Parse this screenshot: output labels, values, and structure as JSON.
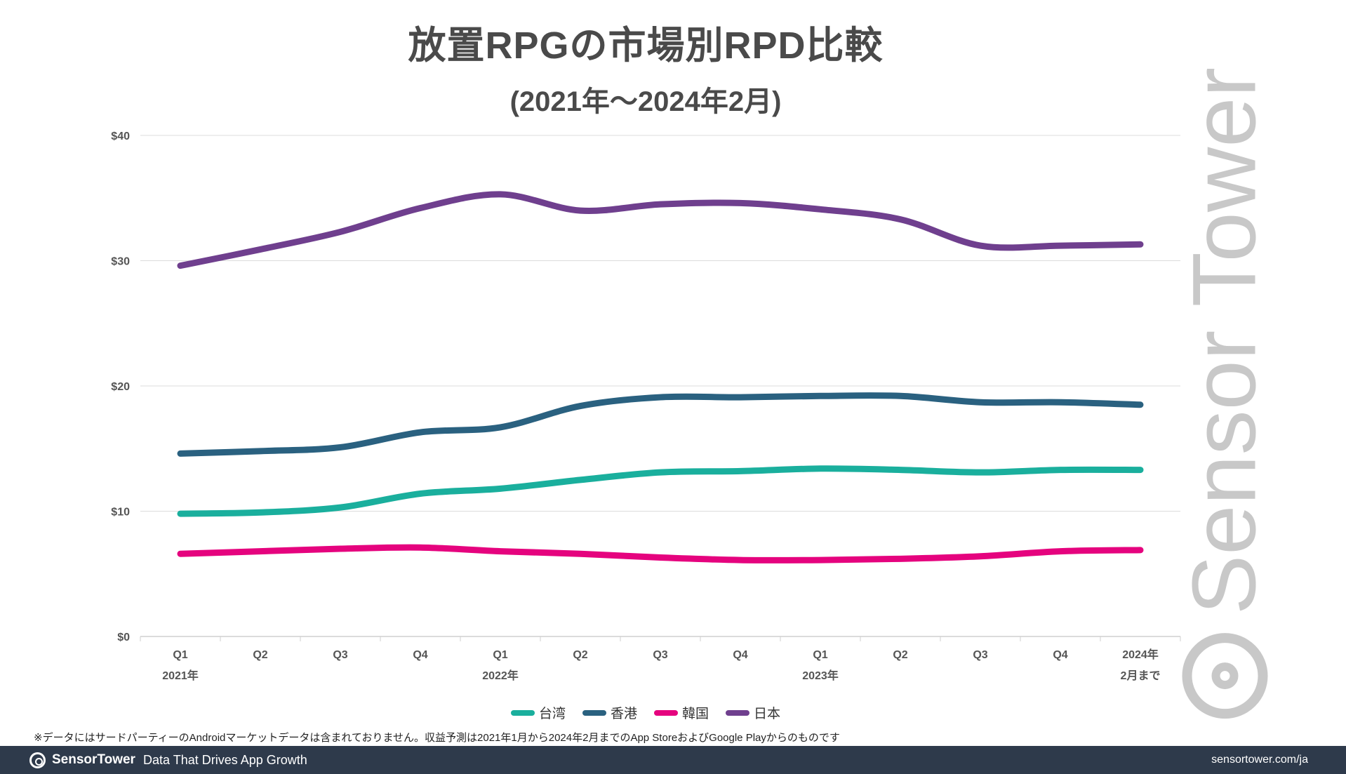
{
  "title": "放置RPGの市場別RPD比較",
  "subtitle": "(2021年～2024年2月)",
  "watermark": "Sensor Tower",
  "chart_data": {
    "type": "line",
    "title": "放置RPGの市場別RPD比較",
    "subtitle": "(2021年～2024年2月)",
    "xlabel": "",
    "ylabel": "",
    "categories": [
      "2021年 Q1",
      "2021年 Q2",
      "2021年 Q3",
      "2021年 Q4",
      "2022年 Q1",
      "2022年 Q2",
      "2022年 Q3",
      "2022年 Q4",
      "2023年 Q1",
      "2023年 Q2",
      "2023年 Q3",
      "2023年 Q4",
      "2024年2月まで"
    ],
    "tick_labels": [
      {
        "top": "Q1",
        "bottom": "2021年"
      },
      {
        "top": "Q2",
        "bottom": ""
      },
      {
        "top": "Q3",
        "bottom": ""
      },
      {
        "top": "Q4",
        "bottom": ""
      },
      {
        "top": "Q1",
        "bottom": "2022年"
      },
      {
        "top": "Q2",
        "bottom": ""
      },
      {
        "top": "Q3",
        "bottom": ""
      },
      {
        "top": "Q4",
        "bottom": ""
      },
      {
        "top": "Q1",
        "bottom": "2023年"
      },
      {
        "top": "Q2",
        "bottom": ""
      },
      {
        "top": "Q3",
        "bottom": ""
      },
      {
        "top": "Q4",
        "bottom": ""
      },
      {
        "top": "2024年",
        "bottom": "2月まで"
      }
    ],
    "yticks": [
      {
        "value": 0,
        "label": "$0"
      },
      {
        "value": 10,
        "label": "$10"
      },
      {
        "value": 20,
        "label": "$20"
      },
      {
        "value": 30,
        "label": "$30"
      },
      {
        "value": 40,
        "label": "$40"
      }
    ],
    "ylim": [
      0,
      40
    ],
    "grid": true,
    "legend_position": "bottom",
    "series": [
      {
        "name": "台湾",
        "color": "#1aaf9d",
        "values": [
          9.8,
          9.9,
          10.3,
          11.4,
          11.8,
          12.5,
          13.1,
          13.2,
          13.4,
          13.3,
          13.1,
          13.3,
          13.3
        ]
      },
      {
        "name": "香港",
        "color": "#2a6180",
        "values": [
          14.6,
          14.8,
          15.1,
          16.3,
          16.7,
          18.4,
          19.1,
          19.1,
          19.2,
          19.2,
          18.7,
          18.7,
          18.5
        ]
      },
      {
        "name": "韓国",
        "color": "#e5037e",
        "values": [
          6.6,
          6.8,
          7.0,
          7.1,
          6.8,
          6.6,
          6.3,
          6.1,
          6.1,
          6.2,
          6.4,
          6.8,
          6.9
        ]
      },
      {
        "name": "日本",
        "color": "#6f3f8e",
        "values": [
          29.6,
          30.9,
          32.3,
          34.2,
          35.3,
          34.0,
          34.5,
          34.6,
          34.1,
          33.3,
          31.2,
          31.2,
          31.3
        ]
      }
    ]
  },
  "footnote": "※データにはサードパーティーのAndroidマーケットデータは含まれておりません。収益予測は2021年1月から2024年2月までのApp StoreおよびGoogle Playからのものです",
  "footer": {
    "brand": "SensorTower",
    "tagline": "Data That Drives App Growth",
    "url": "sensortower.com/ja"
  }
}
